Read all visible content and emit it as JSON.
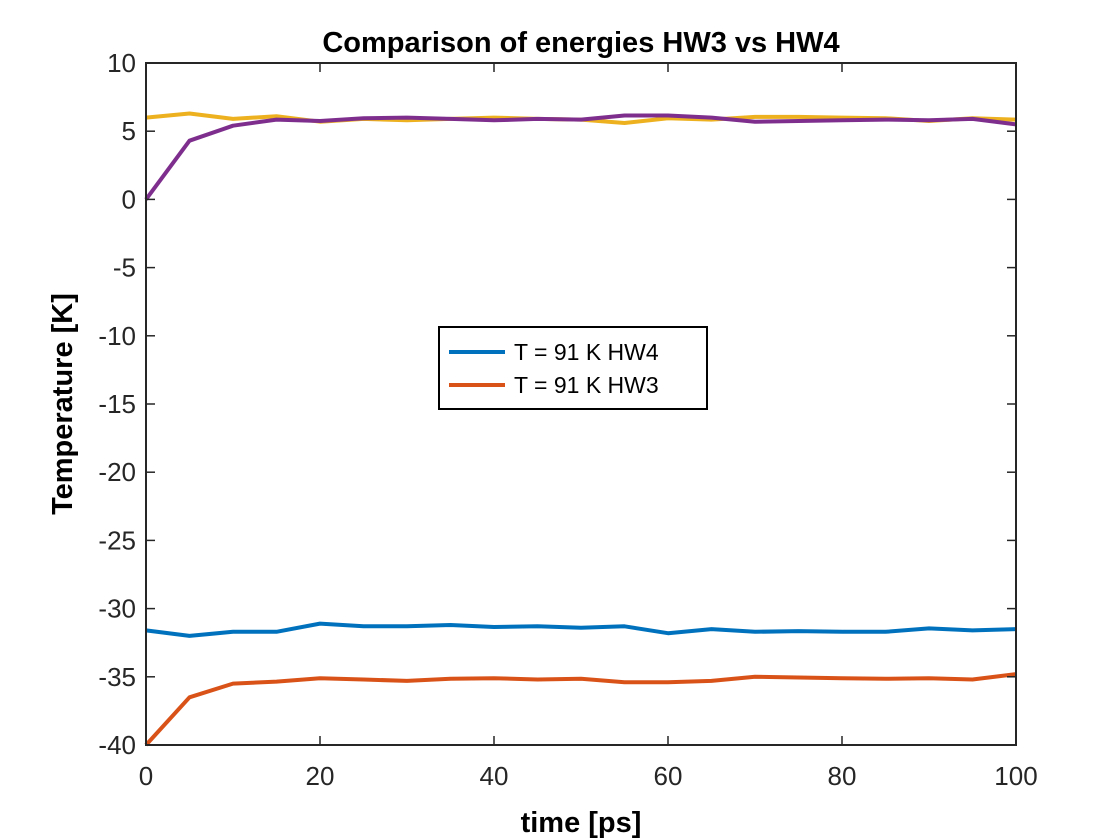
{
  "chart_data": {
    "type": "line",
    "title": "Comparison of energies HW3 vs HW4",
    "xlabel": "time [ps]",
    "ylabel": "Temperature [K]",
    "xlim": [
      0,
      100
    ],
    "ylim": [
      -40,
      10
    ],
    "xticks": [
      0,
      20,
      40,
      60,
      80,
      100
    ],
    "yticks": [
      10,
      5,
      0,
      -5,
      -10,
      -15,
      -20,
      -25,
      -30,
      -35,
      -40
    ],
    "grid": false,
    "legend_position": "center",
    "x": [
      0,
      5,
      10,
      15,
      20,
      25,
      30,
      35,
      40,
      45,
      50,
      55,
      60,
      65,
      70,
      75,
      80,
      85,
      90,
      95,
      100
    ],
    "series": [
      {
        "name": "T = 91 K HW4",
        "color": "#0072BD",
        "in_legend": true,
        "values": [
          -31.6,
          -32.0,
          -31.7,
          -31.7,
          -31.1,
          -31.3,
          -31.3,
          -31.2,
          -31.35,
          -31.3,
          -31.4,
          -31.3,
          -31.8,
          -31.5,
          -31.7,
          -31.65,
          -31.7,
          -31.7,
          -31.45,
          -31.6,
          -31.5
        ]
      },
      {
        "name": "T = 91 K HW3",
        "color": "#D95319",
        "in_legend": true,
        "values": [
          -40.0,
          -36.5,
          -35.5,
          -35.35,
          -35.1,
          -35.2,
          -35.3,
          -35.15,
          -35.1,
          -35.2,
          -35.15,
          -35.4,
          -35.4,
          -35.3,
          -35.0,
          -35.05,
          -35.1,
          -35.15,
          -35.1,
          -35.2,
          -34.8
        ]
      },
      {
        "name": "",
        "color": "#EDB120",
        "in_legend": false,
        "values": [
          6.0,
          6.3,
          5.9,
          6.1,
          5.7,
          5.9,
          5.8,
          5.9,
          6.0,
          5.9,
          5.85,
          5.6,
          5.95,
          5.85,
          6.05,
          6.05,
          6.0,
          5.95,
          5.75,
          5.95,
          5.85
        ]
      },
      {
        "name": "",
        "color": "#7E2F8E",
        "in_legend": true,
        "values": [
          0.0,
          4.3,
          5.4,
          5.85,
          5.75,
          5.95,
          6.0,
          5.9,
          5.8,
          5.9,
          5.85,
          6.15,
          6.15,
          6.0,
          5.7,
          5.75,
          5.8,
          5.85,
          5.8,
          5.9,
          5.5
        ]
      }
    ]
  }
}
